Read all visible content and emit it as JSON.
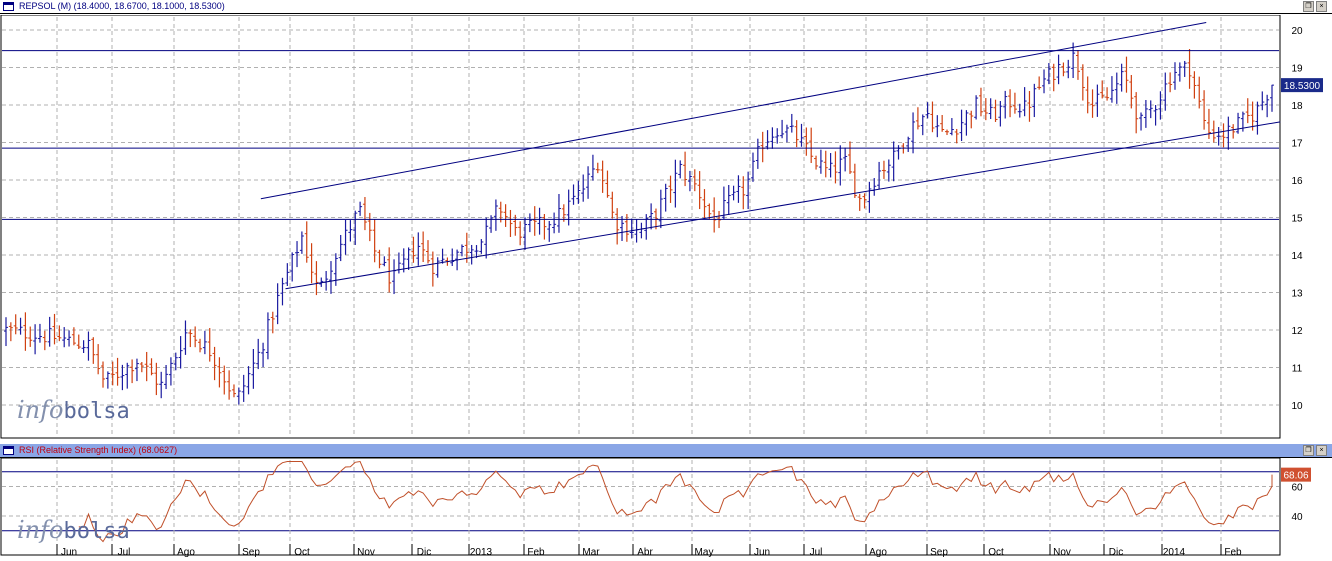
{
  "price_panel": {
    "title": "REPSOL (M) (18.4000, 18.6700, 18.1000, 18.5300)",
    "last_label": "18.5300",
    "watermark": [
      "info",
      "bolsa"
    ]
  },
  "rsi_panel": {
    "title": "RSI (Relative Strength Index) (68.0627)",
    "last_label": "68.06",
    "watermark": [
      "info",
      "bolsa"
    ]
  },
  "window_buttons": [
    "restore-icon",
    "close-icon"
  ],
  "colors": {
    "up": "#1a1aa0",
    "down": "#d04010",
    "line": "#000080",
    "rsi_line": "#c0502a",
    "grid": "#b0b0b0",
    "rsi_title_bg": "#8aa6e6",
    "last_label_bg": "#1a2a8a",
    "rsi_last_bg": "#d05030"
  },
  "chart_data": [
    {
      "type": "ohlc",
      "ylim": [
        9.3,
        20.4
      ],
      "y_ticks": [
        "10",
        "11",
        "12",
        "13",
        "14",
        "15",
        "16",
        "17",
        "18",
        "19",
        "20"
      ],
      "x_labels": [
        "Jun",
        "Jul",
        "Ago",
        "Sep",
        "Oct",
        "Nov",
        "Dic",
        "2013",
        "Feb",
        "Mar",
        "Abr",
        "May",
        "Jun",
        "Jul",
        "Ago",
        "Sep",
        "Oct",
        "Nov",
        "Dic",
        "2014",
        "Feb"
      ],
      "close_path": [
        [
          0,
          12.0
        ],
        [
          6,
          11.8
        ],
        [
          10,
          11.6
        ],
        [
          12,
          10.6
        ],
        [
          16,
          11.2
        ],
        [
          19,
          10.5
        ],
        [
          22,
          12.0
        ],
        [
          25,
          11.4
        ],
        [
          28,
          10.1
        ],
        [
          31,
          11.5
        ],
        [
          33,
          12.8
        ],
        [
          36,
          14.5
        ],
        [
          38,
          13.0
        ],
        [
          40,
          14.0
        ],
        [
          43,
          15.2
        ],
        [
          45,
          14.0
        ],
        [
          47,
          13.3
        ],
        [
          50,
          14.3
        ],
        [
          52,
          13.7
        ],
        [
          55,
          14.1
        ],
        [
          58,
          14.4
        ],
        [
          60,
          15.3
        ],
        [
          62,
          14.6
        ],
        [
          65,
          14.8
        ],
        [
          67,
          15.0
        ],
        [
          70,
          15.7
        ],
        [
          72,
          16.5
        ],
        [
          74,
          14.9
        ],
        [
          77,
          14.6
        ],
        [
          79,
          15.1
        ],
        [
          82,
          16.3
        ],
        [
          84,
          15.8
        ],
        [
          86,
          14.9
        ],
        [
          88,
          15.4
        ],
        [
          90,
          15.8
        ],
        [
          92,
          17.0
        ],
        [
          94,
          17.4
        ],
        [
          96,
          17.2
        ],
        [
          98,
          16.6
        ],
        [
          100,
          16.2
        ],
        [
          102,
          16.5
        ],
        [
          104,
          15.4
        ],
        [
          106,
          16.2
        ],
        [
          108,
          16.6
        ],
        [
          110,
          17.4
        ],
        [
          112,
          17.8
        ],
        [
          114,
          17.2
        ],
        [
          116,
          17.5
        ],
        [
          118,
          18.0
        ],
        [
          120,
          17.7
        ],
        [
          122,
          18.1
        ],
        [
          124,
          17.9
        ],
        [
          126,
          18.6
        ],
        [
          128,
          19.0
        ],
        [
          130,
          19.3
        ],
        [
          132,
          18.0
        ],
        [
          134,
          18.2
        ],
        [
          136,
          18.8
        ],
        [
          138,
          17.5
        ],
        [
          140,
          18.1
        ],
        [
          142,
          18.9
        ],
        [
          144,
          19.0
        ],
        [
          146,
          17.3
        ],
        [
          148,
          17.2
        ],
        [
          150,
          17.5
        ],
        [
          152,
          17.8
        ],
        [
          154,
          18.53
        ]
      ],
      "h_lines": [
        19.45,
        16.85,
        14.95
      ],
      "channel_upper": [
        {
          "i": 31,
          "y": 15.5
        },
        {
          "i": 146,
          "y": 20.2
        }
      ],
      "channel_lower": [
        {
          "i": 34,
          "y": 13.1
        },
        {
          "i": 155,
          "y": 17.55
        }
      ],
      "last_value": 18.53
    },
    {
      "type": "line",
      "ylim": [
        21,
        78
      ],
      "y_ticks": [
        "40",
        "60"
      ],
      "h_lines": [
        70,
        30
      ],
      "last_value": 68.06
    }
  ]
}
